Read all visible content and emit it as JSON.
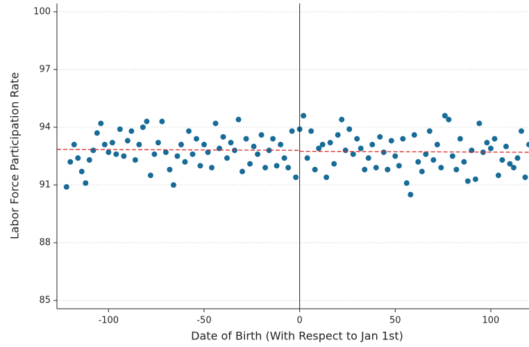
{
  "chart_data": {
    "type": "scatter",
    "x_label": "Date of Birth (With Respect to Jan 1st)",
    "y_label": "Labor Force Participation Rate",
    "x": [
      -122,
      -120,
      -118,
      -116,
      -114,
      -112,
      -110,
      -108,
      -106,
      -104,
      -102,
      -100,
      -98,
      -96,
      -94,
      -92,
      -90,
      -88,
      -86,
      -84,
      -82,
      -80,
      -78,
      -76,
      -74,
      -72,
      -70,
      -68,
      -66,
      -64,
      -62,
      -60,
      -58,
      -56,
      -54,
      -52,
      -50,
      -48,
      -46,
      -44,
      -42,
      -40,
      -38,
      -36,
      -34,
      -32,
      -30,
      -28,
      -26,
      -24,
      -22,
      -20,
      -18,
      -16,
      -14,
      -12,
      -10,
      -8,
      -6,
      -4,
      -2,
      0,
      2,
      4,
      6,
      8,
      10,
      12,
      14,
      16,
      18,
      20,
      22,
      24,
      26,
      28,
      30,
      32,
      34,
      36,
      38,
      40,
      42,
      44,
      46,
      48,
      50,
      52,
      54,
      56,
      58,
      60,
      62,
      64,
      66,
      68,
      70,
      72,
      74,
      76,
      78,
      80,
      82,
      84,
      86,
      88,
      90,
      92,
      94,
      96,
      98,
      100,
      102,
      104,
      106,
      108,
      110,
      112,
      114,
      116,
      118,
      120
    ],
    "values": [
      90.9,
      92.2,
      93.1,
      92.4,
      91.7,
      91.1,
      92.3,
      92.8,
      93.7,
      94.2,
      93.1,
      92.7,
      93.2,
      92.6,
      93.9,
      92.5,
      93.3,
      93.8,
      92.3,
      93.1,
      94.0,
      94.3,
      91.5,
      92.6,
      93.2,
      94.3,
      92.7,
      91.8,
      91.0,
      92.5,
      93.1,
      92.2,
      93.8,
      92.6,
      93.4,
      92.0,
      93.1,
      92.7,
      91.9,
      94.2,
      92.9,
      93.5,
      92.4,
      93.2,
      92.8,
      94.4,
      91.7,
      93.4,
      92.1,
      93.0,
      92.6,
      93.6,
      91.9,
      92.8,
      93.4,
      92.0,
      93.1,
      92.4,
      91.9,
      93.8,
      91.4,
      93.9,
      94.6,
      92.4,
      93.8,
      91.8,
      92.9,
      93.1,
      91.4,
      93.2,
      92.1,
      93.6,
      94.4,
      92.8,
      93.9,
      92.6,
      93.4,
      92.9,
      91.8,
      92.4,
      93.1,
      91.9,
      93.5,
      92.7,
      91.8,
      93.3,
      92.5,
      92.0,
      93.4,
      91.1,
      90.5,
      93.6,
      92.2,
      91.7,
      92.6,
      93.8,
      92.3,
      93.1,
      91.9,
      94.6,
      94.4,
      92.5,
      91.8,
      93.4,
      92.2,
      91.2,
      92.8,
      91.3,
      94.2,
      92.7,
      93.2,
      92.9,
      93.4,
      91.5,
      92.3,
      93.0,
      92.1,
      91.9,
      92.4,
      93.8,
      91.4,
      93.1
    ],
    "color": "#176b96",
    "fit_lines": [
      {
        "x": [
          -127,
          0
        ],
        "values": [
          92.85,
          92.8
        ],
        "color": "#d62728"
      },
      {
        "x": [
          0,
          120
        ],
        "values": [
          92.75,
          92.7
        ],
        "color": "#d62728"
      }
    ],
    "cutoff": 0,
    "xlim": [
      -127,
      120
    ],
    "xticks": [
      -100,
      -50,
      0,
      50,
      100
    ],
    "ylim": [
      84.57,
      100.43
    ],
    "yticks": [
      85,
      88,
      91,
      94,
      97,
      100
    ],
    "grid": true
  }
}
